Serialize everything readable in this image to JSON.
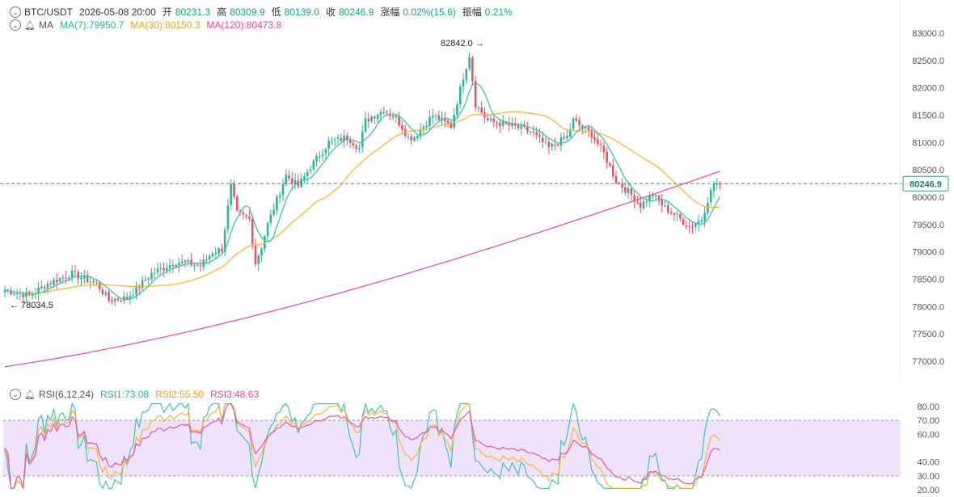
{
  "header": {
    "symbol": "BTC/USDT",
    "datetime": "2026-05-08 20:00",
    "open_label": "开",
    "open": "80231.3",
    "high_label": "高",
    "high": "80309.9",
    "low_label": "低",
    "low": "80139.0",
    "close_label": "收",
    "close": "80246.9",
    "change_label": "涨幅",
    "change": "0.02%(15.6)",
    "amplitude_label": "振幅",
    "amplitude": "0.21%"
  },
  "ma_legend": {
    "label": "MA",
    "ma7": "MA(7):79950.7",
    "ma30": "MA(30):80150.3",
    "ma120": "MA(120):80473.8"
  },
  "rsi_legend": {
    "label": "RSI(6,12,24)",
    "rsi1": "RSI1:73.08",
    "rsi2": "RSI2:55.50",
    "rsi3": "RSI3:48.63"
  },
  "colors": {
    "up": "#2fb39b",
    "down": "#e25667",
    "ma7": "#40c3b0",
    "ma30": "#f4b73a",
    "ma120": "#e754b2",
    "rsi_band": "#efe2fb"
  },
  "chart_data": [
    {
      "type": "candlestick",
      "title": "BTC/USDT",
      "ylim": [
        76600,
        83300
      ],
      "yticks": [
        "83000.0",
        "82500.0",
        "82000.0",
        "81500.0",
        "81000.0",
        "80500.0",
        "80000.0",
        "79500.0",
        "79000.0",
        "78500.0",
        "78000.0",
        "77500.0",
        "77000.0"
      ],
      "last_price": "80246.9",
      "annotations": {
        "high": "82842.0 →",
        "low": "← 78034.5"
      },
      "anchors": [
        [
          0,
          78300
        ],
        [
          8,
          78200
        ],
        [
          14,
          78420
        ],
        [
          22,
          78600
        ],
        [
          30,
          78420
        ],
        [
          34,
          78120
        ],
        [
          40,
          78160
        ],
        [
          48,
          78600
        ],
        [
          56,
          78820
        ],
        [
          64,
          78750
        ],
        [
          68,
          79000
        ],
        [
          71,
          79050
        ],
        [
          74,
          80200
        ],
        [
          76,
          79700
        ],
        [
          80,
          79600
        ],
        [
          82,
          78800
        ],
        [
          84,
          79100
        ],
        [
          86,
          79500
        ],
        [
          90,
          80100
        ],
        [
          92,
          80400
        ],
        [
          96,
          80200
        ],
        [
          100,
          80550
        ],
        [
          106,
          81000
        ],
        [
          112,
          81100
        ],
        [
          116,
          80900
        ],
        [
          118,
          81400
        ],
        [
          124,
          81600
        ],
        [
          128,
          81450
        ],
        [
          132,
          81100
        ],
        [
          134,
          81100
        ],
        [
          140,
          81500
        ],
        [
          146,
          81300
        ],
        [
          150,
          82200
        ],
        [
          152,
          82600
        ],
        [
          154,
          81700
        ],
        [
          158,
          81400
        ],
        [
          166,
          81300
        ],
        [
          172,
          81200
        ],
        [
          178,
          80900
        ],
        [
          184,
          81100
        ],
        [
          186,
          81400
        ],
        [
          192,
          81150
        ],
        [
          196,
          80800
        ],
        [
          200,
          80300
        ],
        [
          204,
          80100
        ],
        [
          208,
          79850
        ],
        [
          212,
          80050
        ],
        [
          216,
          79800
        ],
        [
          220,
          79650
        ],
        [
          224,
          79450
        ],
        [
          228,
          79600
        ],
        [
          230,
          79950
        ],
        [
          232,
          80250
        ],
        [
          234,
          80247
        ]
      ],
      "ma_last": {
        "MA(7)": 79950.7,
        "MA(30)": 80150.3,
        "MA(120)": 80473.8
      }
    },
    {
      "type": "line",
      "title": "RSI(6,12,24)",
      "ylim": [
        18,
        84
      ],
      "yticks": [
        "80.00",
        "70.00",
        "60.00",
        "40.00",
        "30.00",
        "20.00"
      ],
      "band": [
        30,
        70
      ],
      "series": [
        {
          "name": "RSI1",
          "last": 73.08
        },
        {
          "name": "RSI2",
          "last": 55.5
        },
        {
          "name": "RSI3",
          "last": 48.63
        }
      ]
    }
  ]
}
